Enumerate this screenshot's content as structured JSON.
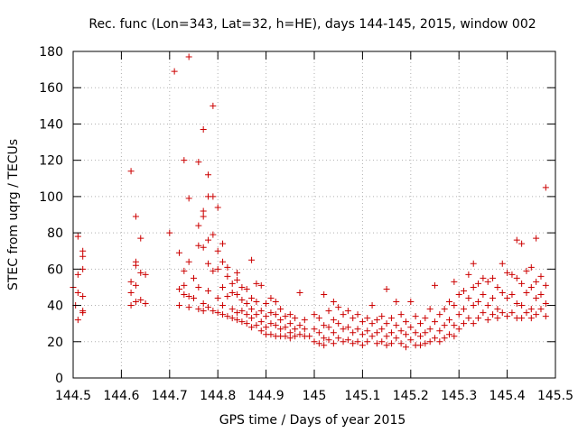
{
  "chart_data": {
    "type": "scatter",
    "title": "Rec. func (Lon=343, Lat=32, h=HE), days 144-145, 2015, window 002",
    "xlabel": "GPS time / Days of year 2015",
    "ylabel": "STEC from uqrg / TECUs",
    "xlim": [
      144.5,
      145.5
    ],
    "ylim": [
      0,
      180
    ],
    "x_ticks": [
      "144.5",
      "144.6",
      "144.7",
      "144.8",
      "144.9",
      "145",
      "145.1",
      "145.2",
      "145.3",
      "145.4",
      "145.5"
    ],
    "y_ticks": [
      "0",
      "20",
      "40",
      "60",
      "80",
      "100",
      "120",
      "140",
      "160",
      "180"
    ],
    "grid": true,
    "marker": "+",
    "color": "#cc0000",
    "points": [
      [
        144.5,
        50
      ],
      [
        144.505,
        40
      ],
      [
        144.51,
        78
      ],
      [
        144.51,
        57
      ],
      [
        144.51,
        47
      ],
      [
        144.51,
        32
      ],
      [
        144.52,
        67
      ],
      [
        144.52,
        70
      ],
      [
        144.52,
        60
      ],
      [
        144.52,
        45
      ],
      [
        144.52,
        37
      ],
      [
        144.52,
        36
      ],
      [
        144.62,
        114
      ],
      [
        144.62,
        53
      ],
      [
        144.62,
        47
      ],
      [
        144.62,
        40
      ],
      [
        144.63,
        89
      ],
      [
        144.63,
        64
      ],
      [
        144.63,
        62
      ],
      [
        144.63,
        51
      ],
      [
        144.63,
        42
      ],
      [
        144.64,
        77
      ],
      [
        144.64,
        58
      ],
      [
        144.64,
        43
      ],
      [
        144.65,
        57
      ],
      [
        144.65,
        41
      ],
      [
        144.7,
        80
      ],
      [
        144.71,
        169
      ],
      [
        144.72,
        69
      ],
      [
        144.72,
        49
      ],
      [
        144.72,
        40
      ],
      [
        144.73,
        120
      ],
      [
        144.73,
        59
      ],
      [
        144.73,
        51
      ],
      [
        144.73,
        46
      ],
      [
        144.74,
        177
      ],
      [
        144.74,
        99
      ],
      [
        144.74,
        64
      ],
      [
        144.74,
        45
      ],
      [
        144.74,
        39
      ],
      [
        144.75,
        55
      ],
      [
        144.75,
        44
      ],
      [
        144.76,
        119
      ],
      [
        144.76,
        84
      ],
      [
        144.76,
        73
      ],
      [
        144.76,
        50
      ],
      [
        144.76,
        38
      ],
      [
        144.77,
        137
      ],
      [
        144.77,
        92
      ],
      [
        144.77,
        89
      ],
      [
        144.77,
        72
      ],
      [
        144.77,
        41
      ],
      [
        144.77,
        37
      ],
      [
        144.78,
        112
      ],
      [
        144.78,
        100
      ],
      [
        144.78,
        76
      ],
      [
        144.78,
        63
      ],
      [
        144.78,
        48
      ],
      [
        144.78,
        39
      ],
      [
        144.79,
        150
      ],
      [
        144.79,
        100
      ],
      [
        144.79,
        79
      ],
      [
        144.79,
        59
      ],
      [
        144.79,
        37
      ],
      [
        144.8,
        94
      ],
      [
        144.8,
        70
      ],
      [
        144.8,
        60
      ],
      [
        144.8,
        44
      ],
      [
        144.8,
        36
      ],
      [
        144.81,
        74
      ],
      [
        144.81,
        64
      ],
      [
        144.81,
        50
      ],
      [
        144.81,
        40
      ],
      [
        144.81,
        35
      ],
      [
        144.82,
        61
      ],
      [
        144.82,
        56
      ],
      [
        144.82,
        45
      ],
      [
        144.82,
        34
      ],
      [
        144.83,
        52
      ],
      [
        144.83,
        47
      ],
      [
        144.83,
        38
      ],
      [
        144.83,
        33
      ],
      [
        144.84,
        58
      ],
      [
        144.84,
        54
      ],
      [
        144.84,
        46
      ],
      [
        144.84,
        36
      ],
      [
        144.84,
        32
      ],
      [
        144.85,
        50
      ],
      [
        144.85,
        43
      ],
      [
        144.85,
        37
      ],
      [
        144.85,
        31
      ],
      [
        144.86,
        49
      ],
      [
        144.86,
        41
      ],
      [
        144.86,
        35
      ],
      [
        144.86,
        30
      ],
      [
        144.87,
        65
      ],
      [
        144.87,
        44
      ],
      [
        144.87,
        38
      ],
      [
        144.87,
        33
      ],
      [
        144.87,
        28
      ],
      [
        144.88,
        52
      ],
      [
        144.88,
        42
      ],
      [
        144.88,
        35
      ],
      [
        144.88,
        29
      ],
      [
        144.89,
        51
      ],
      [
        144.89,
        37
      ],
      [
        144.89,
        31
      ],
      [
        144.89,
        26
      ],
      [
        144.9,
        41
      ],
      [
        144.9,
        34
      ],
      [
        144.9,
        28
      ],
      [
        144.9,
        24
      ],
      [
        144.91,
        44
      ],
      [
        144.91,
        36
      ],
      [
        144.91,
        30
      ],
      [
        144.91,
        24
      ],
      [
        144.92,
        42
      ],
      [
        144.92,
        35
      ],
      [
        144.92,
        29
      ],
      [
        144.92,
        23
      ],
      [
        144.93,
        38
      ],
      [
        144.93,
        32
      ],
      [
        144.93,
        27
      ],
      [
        144.93,
        23
      ],
      [
        144.94,
        34
      ],
      [
        144.94,
        28
      ],
      [
        144.94,
        23
      ],
      [
        144.95,
        35
      ],
      [
        144.95,
        30
      ],
      [
        144.95,
        25
      ],
      [
        144.95,
        22
      ],
      [
        144.96,
        33
      ],
      [
        144.96,
        27
      ],
      [
        144.96,
        23
      ],
      [
        144.97,
        47
      ],
      [
        144.97,
        29
      ],
      [
        144.97,
        24
      ],
      [
        144.98,
        32
      ],
      [
        144.98,
        27
      ],
      [
        144.98,
        23
      ],
      [
        144.99,
        23
      ],
      [
        145.0,
        35
      ],
      [
        145.0,
        27
      ],
      [
        145.0,
        20
      ],
      [
        145.01,
        33
      ],
      [
        145.01,
        25
      ],
      [
        145.01,
        19
      ],
      [
        145.02,
        46
      ],
      [
        145.02,
        29
      ],
      [
        145.02,
        22
      ],
      [
        145.02,
        18
      ],
      [
        145.03,
        37
      ],
      [
        145.03,
        28
      ],
      [
        145.03,
        21
      ],
      [
        145.04,
        42
      ],
      [
        145.04,
        32
      ],
      [
        145.04,
        25
      ],
      [
        145.04,
        19
      ],
      [
        145.05,
        39
      ],
      [
        145.05,
        30
      ],
      [
        145.05,
        22
      ],
      [
        145.06,
        35
      ],
      [
        145.06,
        27
      ],
      [
        145.06,
        20
      ],
      [
        145.07,
        37
      ],
      [
        145.07,
        28
      ],
      [
        145.07,
        21
      ],
      [
        145.08,
        33
      ],
      [
        145.08,
        25
      ],
      [
        145.08,
        19
      ],
      [
        145.09,
        35
      ],
      [
        145.09,
        27
      ],
      [
        145.09,
        20
      ],
      [
        145.1,
        31
      ],
      [
        145.1,
        24
      ],
      [
        145.1,
        18
      ],
      [
        145.11,
        33
      ],
      [
        145.11,
        26
      ],
      [
        145.11,
        20
      ],
      [
        145.12,
        40
      ],
      [
        145.12,
        30
      ],
      [
        145.12,
        23
      ],
      [
        145.13,
        32
      ],
      [
        145.13,
        25
      ],
      [
        145.13,
        19
      ],
      [
        145.14,
        34
      ],
      [
        145.14,
        27
      ],
      [
        145.14,
        20
      ],
      [
        145.15,
        49
      ],
      [
        145.15,
        30
      ],
      [
        145.15,
        23
      ],
      [
        145.15,
        18
      ],
      [
        145.16,
        33
      ],
      [
        145.16,
        25
      ],
      [
        145.16,
        19
      ],
      [
        145.17,
        42
      ],
      [
        145.17,
        29
      ],
      [
        145.17,
        22
      ],
      [
        145.18,
        35
      ],
      [
        145.18,
        26
      ],
      [
        145.18,
        19
      ],
      [
        145.19,
        31
      ],
      [
        145.19,
        24
      ],
      [
        145.19,
        17
      ],
      [
        145.2,
        42
      ],
      [
        145.2,
        28
      ],
      [
        145.2,
        21
      ],
      [
        145.21,
        34
      ],
      [
        145.21,
        25
      ],
      [
        145.21,
        18
      ],
      [
        145.22,
        30
      ],
      [
        145.22,
        23
      ],
      [
        145.22,
        18
      ],
      [
        145.23,
        33
      ],
      [
        145.23,
        25
      ],
      [
        145.23,
        19
      ],
      [
        145.24,
        38
      ],
      [
        145.24,
        27
      ],
      [
        145.24,
        20
      ],
      [
        145.25,
        51
      ],
      [
        145.25,
        31
      ],
      [
        145.25,
        22
      ],
      [
        145.26,
        35
      ],
      [
        145.26,
        26
      ],
      [
        145.26,
        20
      ],
      [
        145.27,
        38
      ],
      [
        145.27,
        29
      ],
      [
        145.27,
        22
      ],
      [
        145.28,
        42
      ],
      [
        145.28,
        32
      ],
      [
        145.28,
        24
      ],
      [
        145.29,
        53
      ],
      [
        145.29,
        40
      ],
      [
        145.29,
        29
      ],
      [
        145.29,
        23
      ],
      [
        145.3,
        46
      ],
      [
        145.3,
        35
      ],
      [
        145.3,
        27
      ],
      [
        145.31,
        48
      ],
      [
        145.31,
        38
      ],
      [
        145.31,
        30
      ],
      [
        145.32,
        57
      ],
      [
        145.32,
        44
      ],
      [
        145.32,
        33
      ],
      [
        145.33,
        63
      ],
      [
        145.33,
        50
      ],
      [
        145.33,
        40
      ],
      [
        145.33,
        30
      ],
      [
        145.34,
        52
      ],
      [
        145.34,
        42
      ],
      [
        145.34,
        33
      ],
      [
        145.35,
        55
      ],
      [
        145.35,
        46
      ],
      [
        145.35,
        36
      ],
      [
        145.36,
        53
      ],
      [
        145.36,
        40
      ],
      [
        145.36,
        32
      ],
      [
        145.37,
        55
      ],
      [
        145.37,
        44
      ],
      [
        145.37,
        35
      ],
      [
        145.38,
        50
      ],
      [
        145.38,
        38
      ],
      [
        145.38,
        33
      ],
      [
        145.39,
        63
      ],
      [
        145.39,
        47
      ],
      [
        145.39,
        36
      ],
      [
        145.4,
        58
      ],
      [
        145.4,
        44
      ],
      [
        145.4,
        34
      ],
      [
        145.41,
        57
      ],
      [
        145.41,
        46
      ],
      [
        145.41,
        36
      ],
      [
        145.42,
        76
      ],
      [
        145.42,
        55
      ],
      [
        145.42,
        41
      ],
      [
        145.42,
        33
      ],
      [
        145.43,
        74
      ],
      [
        145.43,
        52
      ],
      [
        145.43,
        40
      ],
      [
        145.43,
        33
      ],
      [
        145.44,
        59
      ],
      [
        145.44,
        47
      ],
      [
        145.44,
        36
      ],
      [
        145.45,
        61
      ],
      [
        145.45,
        50
      ],
      [
        145.45,
        38
      ],
      [
        145.45,
        33
      ],
      [
        145.46,
        77
      ],
      [
        145.46,
        53
      ],
      [
        145.46,
        44
      ],
      [
        145.46,
        35
      ],
      [
        145.47,
        56
      ],
      [
        145.47,
        46
      ],
      [
        145.47,
        38
      ],
      [
        145.48,
        105
      ],
      [
        145.48,
        51
      ],
      [
        145.48,
        41
      ],
      [
        145.48,
        34
      ]
    ]
  }
}
